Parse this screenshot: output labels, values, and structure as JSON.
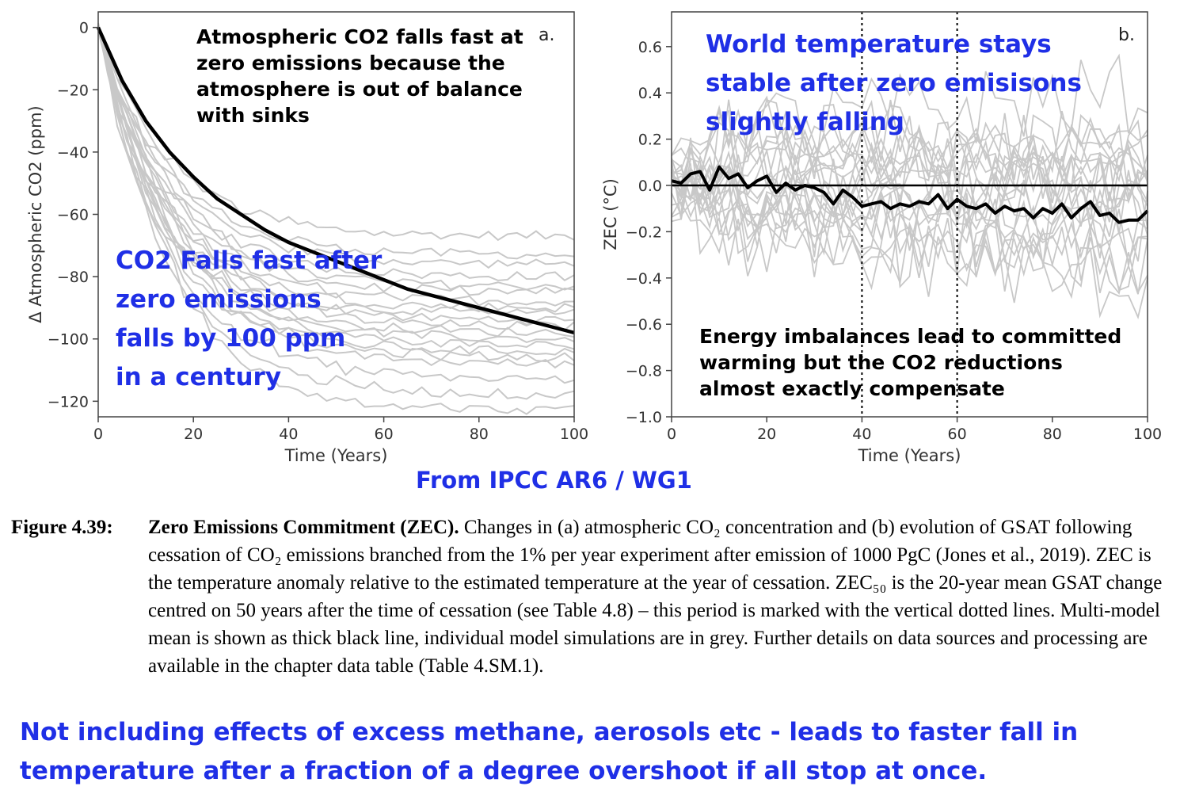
{
  "chart_data": [
    {
      "type": "line",
      "panel_letter": "a.",
      "xlabel": "Time (Years)",
      "ylabel": "Δ Atmospheric CO2 (ppm)",
      "xlim": [
        0,
        100
      ],
      "ylim": [
        -125,
        5
      ],
      "xticks": [
        0,
        20,
        40,
        60,
        80,
        100
      ],
      "yticks": [
        0,
        -20,
        -40,
        -60,
        -80,
        -100,
        -120
      ],
      "mean_color": "#000000",
      "model_color": "#c8c8c8",
      "mean": {
        "x": [
          0,
          5,
          10,
          15,
          20,
          25,
          30,
          35,
          40,
          45,
          50,
          55,
          60,
          65,
          70,
          75,
          80,
          85,
          90,
          95,
          100
        ],
        "y": [
          0,
          -17,
          -30,
          -40,
          -48,
          -55,
          -60,
          -65,
          -69,
          -72,
          -75,
          -78,
          -81,
          -84,
          -86,
          -88,
          -90,
          -92,
          -94,
          -96,
          -98
        ]
      },
      "model_endpoints": [
        -67,
        -73,
        -76,
        -80,
        -83,
        -85,
        -88,
        -90,
        -92,
        -94,
        -96,
        -98,
        -100,
        -102,
        -104,
        -106,
        -108,
        -113,
        -118,
        -123
      ],
      "annotations": [
        {
          "text": "Atmospheric CO2 falls fast at\nzero emissions because the\natmosphere is out of balance\nwith sinks",
          "color": "#000000"
        },
        {
          "text": "CO2 Falls fast after\nzero emissions\nfalls by 100 ppm\nin a century",
          "color": "#1f2fe6"
        }
      ]
    },
    {
      "type": "line",
      "panel_letter": "b.",
      "xlabel": "Time (Years)",
      "ylabel": "ZEC (°C)",
      "xlim": [
        0,
        100
      ],
      "ylim": [
        -1.0,
        0.75
      ],
      "xticks": [
        0,
        20,
        40,
        60,
        80,
        100
      ],
      "yticks": [
        0.6,
        0.4,
        0.2,
        0.0,
        -0.2,
        -0.4,
        -0.6,
        -0.8,
        -1.0
      ],
      "ytick_labels": [
        "0.6",
        "0.4",
        "0.2",
        "0.0",
        "−0.2",
        "−0.4",
        "−0.6",
        "−0.8",
        "−1.0"
      ],
      "vlines": [
        40,
        60
      ],
      "zero_line": true,
      "mean_color": "#000000",
      "model_color": "#c8c8c8",
      "mean": {
        "x": [
          0,
          2,
          4,
          6,
          8,
          10,
          12,
          14,
          16,
          18,
          20,
          22,
          24,
          26,
          28,
          30,
          32,
          34,
          36,
          38,
          40,
          42,
          44,
          46,
          48,
          50,
          52,
          54,
          56,
          58,
          60,
          62,
          64,
          66,
          68,
          70,
          72,
          74,
          76,
          78,
          80,
          82,
          84,
          86,
          88,
          90,
          92,
          94,
          96,
          98,
          100
        ],
        "y": [
          0.02,
          0.01,
          0.05,
          0.06,
          -0.02,
          0.08,
          0.03,
          0.05,
          -0.01,
          0.02,
          0.04,
          -0.03,
          0.01,
          -0.02,
          0.0,
          -0.01,
          -0.03,
          -0.08,
          -0.02,
          -0.05,
          -0.09,
          -0.08,
          -0.07,
          -0.1,
          -0.08,
          -0.09,
          -0.07,
          -0.08,
          -0.04,
          -0.1,
          -0.06,
          -0.09,
          -0.1,
          -0.08,
          -0.12,
          -0.09,
          -0.11,
          -0.1,
          -0.14,
          -0.1,
          -0.12,
          -0.08,
          -0.14,
          -0.1,
          -0.07,
          -0.13,
          -0.12,
          -0.16,
          -0.15,
          -0.15,
          -0.11
        ]
      },
      "annotations": [
        {
          "text": "World temperature stays\nstable after zero emisisons\nslightly falling",
          "color": "#1f2fe6"
        },
        {
          "text": "Energy imbalances lead to committed\nwarming but the CO2 reductions\nalmost exactly compensate",
          "color": "#000000"
        }
      ]
    }
  ],
  "source_note": "From IPCC AR6 / WG1",
  "caption": {
    "label": "Figure 4.39:",
    "title": "Zero Emissions Commitment (ZEC).",
    "text": "Changes in (a) atmospheric CO₂ concentration and (b) evolution of GSAT following cessation of CO₂ emissions branched from the 1% per year experiment after emission of 1000 PgC (Jones et al., 2019). ZEC is the temperature anomaly relative to the estimated temperature at the year of cessation. ZEC₅₀ is the 20-year mean GSAT change centred on 50 years after the time of cessation (see Table 4.8) – this period is marked with the vertical dotted lines. Multi-model mean is shown as thick black line, individual model simulations are in grey. Further details on data sources and processing are available in the chapter data table (Table 4.SM.1)."
  },
  "bottom_note": "Not including effects of excess methane, aerosols etc - leads to faster fall in\ntemperature after a fraction of a degree overshoot if all stop at once."
}
